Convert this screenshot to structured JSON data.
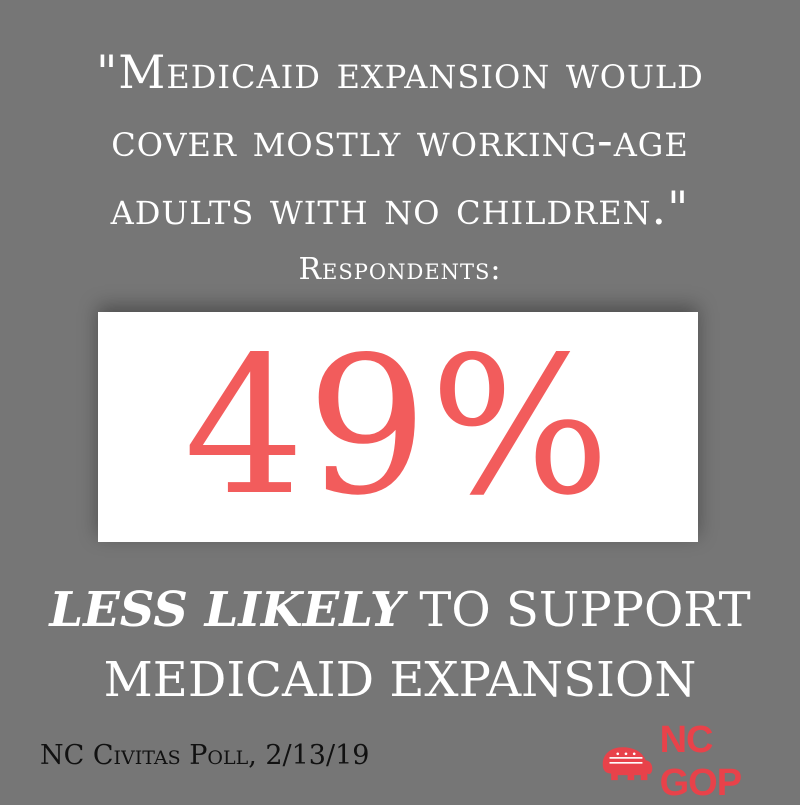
{
  "quote": {
    "line1": "\"Medicaid expansion would",
    "line2": "cover mostly working-age",
    "line3": "adults with no children.\""
  },
  "respondents_label": "Respondents:",
  "stat": {
    "value": "49%",
    "color": "#f25c5c"
  },
  "result": {
    "emphasis": "LESS LIKELY",
    "rest": " TO SUPPORT",
    "line2": "MEDICAID EXPANSION"
  },
  "source": "NC Civitas Poll, 2/13/19",
  "logo": {
    "text": "NC GOP",
    "icon": "elephant-icon",
    "color": "#e8424a"
  },
  "colors": {
    "background": "#767676",
    "text": "#ffffff"
  }
}
